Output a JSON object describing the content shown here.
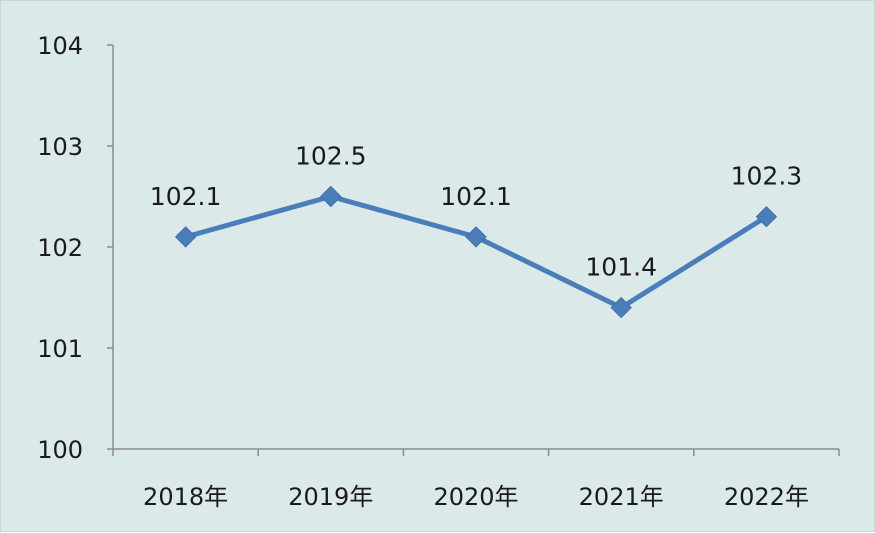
{
  "chart_data": {
    "type": "line",
    "title": "",
    "xlabel": "",
    "ylabel": "",
    "categories": [
      "2018年",
      "2019年",
      "2020年",
      "2021年",
      "2022年"
    ],
    "series": [
      {
        "values": [
          102.1,
          102.5,
          102.1,
          101.4,
          102.3
        ],
        "color": "#4a7ebb"
      }
    ],
    "data_labels": [
      "102.1",
      "102.5",
      "102.1",
      "101.4",
      "102.3"
    ],
    "ylim": [
      100,
      104
    ],
    "y_ticks": [
      "100",
      "101",
      "102",
      "103",
      "104"
    ],
    "marker": "diamond",
    "grid": false,
    "legend": "none",
    "background_color": "#dce9e9",
    "axis_color": "#8c8c8c"
  }
}
